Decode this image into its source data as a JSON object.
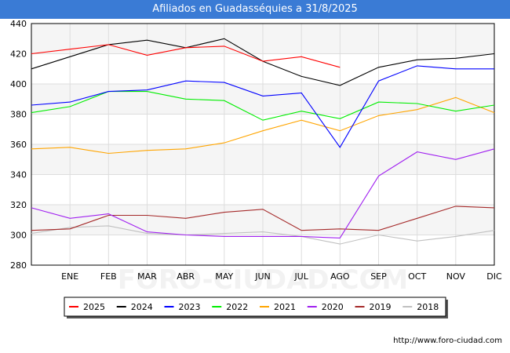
{
  "title": "Afiliados en Guadasséquies a 31/8/2025",
  "footer_url": "http://www.foro-ciudad.com",
  "watermark": "FORO-CIUDAD.COM",
  "chart_data": {
    "type": "line",
    "title": "Afiliados en Guadasséquies a 31/8/2025",
    "xlabel": "",
    "ylabel": "",
    "categories": [
      "",
      "ENE",
      "FEB",
      "MAR",
      "ABR",
      "MAY",
      "JUN",
      "JUL",
      "AGO",
      "SEP",
      "OCT",
      "NOV",
      "DIC"
    ],
    "ylim": [
      280,
      440
    ],
    "yticks": [
      280,
      300,
      320,
      340,
      360,
      380,
      400,
      420,
      440
    ],
    "grid": true,
    "legend_position": "bottom",
    "series": [
      {
        "name": "2025",
        "color": "#ff0000",
        "values": [
          420,
          423,
          426,
          419,
          424,
          425,
          415,
          418,
          411,
          null,
          null,
          null,
          null
        ]
      },
      {
        "name": "2024",
        "color": "#000000",
        "values": [
          410,
          418,
          426,
          429,
          424,
          430,
          415,
          405,
          399,
          411,
          416,
          417,
          420
        ]
      },
      {
        "name": "2023",
        "color": "#0000ff",
        "values": [
          386,
          388,
          395,
          396,
          402,
          401,
          392,
          394,
          358,
          402,
          412,
          410,
          410
        ]
      },
      {
        "name": "2022",
        "color": "#00ee00",
        "values": [
          381,
          385,
          395,
          395,
          390,
          389,
          376,
          382,
          377,
          388,
          387,
          382,
          386
        ]
      },
      {
        "name": "2021",
        "color": "#ffa500",
        "values": [
          357,
          358,
          354,
          356,
          357,
          361,
          369,
          376,
          369,
          379,
          383,
          391,
          381
        ]
      },
      {
        "name": "2020",
        "color": "#a020f0",
        "values": [
          318,
          311,
          314,
          302,
          300,
          299,
          299,
          299,
          298,
          339,
          355,
          350,
          357
        ]
      },
      {
        "name": "2019",
        "color": "#a52a2a",
        "values": [
          303,
          304,
          313,
          313,
          311,
          315,
          317,
          303,
          304,
          303,
          311,
          319,
          318
        ]
      },
      {
        "name": "2018",
        "color": "#c0c0c0",
        "values": [
          301,
          305,
          306,
          301,
          300,
          301,
          302,
          299,
          294,
          300,
          296,
          299,
          303
        ]
      }
    ]
  }
}
